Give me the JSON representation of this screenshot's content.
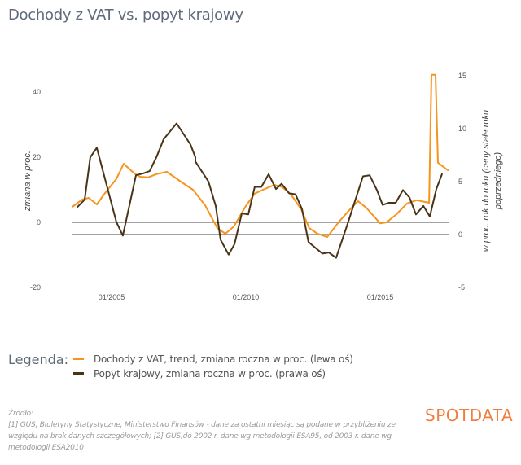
{
  "title": "Dochody z VAT vs. popyt krajowy",
  "legend": {
    "heading": "Legenda:",
    "items": [
      {
        "label": "Dochody z VAT, trend, zmiana roczna w proc. (lewa oś)",
        "color": "#f7941d"
      },
      {
        "label": "Popyt krajowy, zmiana roczna w proc. (prawa oś)",
        "color": "#4a3418"
      }
    ]
  },
  "source": {
    "heading": "Źródło:",
    "text": "[1] GUS, Biuletyny Statystyczne, Ministerstwo Finansów - dane za ostatni miesiąc są podane w przybliżeniu ze względu na brak danych szczegółowych; [2] GUS,do 2002 r. dane wg metodologii ESA95, od 2003 r. dane wg metodologii ESA2010"
  },
  "logo": {
    "text": "SPOTDATA",
    "color": "#f07d3c"
  },
  "chart_data": {
    "type": "line",
    "title": "Dochody z VAT vs. popyt krajowy",
    "ylabel": "zmiana w proc.",
    "y2label": "w proc. rok do roku (ceny stałe roku poprzedniego)",
    "xlabel": "",
    "x_ticks": [
      {
        "x": 2005.0,
        "label": "01/2005"
      },
      {
        "x": 2010.0,
        "label": "01/2010"
      },
      {
        "x": 2015.0,
        "label": "01/2015"
      }
    ],
    "xlim": [
      2003.45,
      2017.5
    ],
    "ylim": [
      -20,
      50
    ],
    "y_ticks": [
      -20,
      0,
      20,
      40
    ],
    "y2lim": [
      -5,
      15.4
    ],
    "y2_ticks": [
      -5,
      0,
      5,
      10,
      15
    ],
    "reference_lines": [
      {
        "axis": "left",
        "value": 0
      },
      {
        "axis": "right",
        "value": 0
      }
    ],
    "grid": false,
    "legend_position": "bottom",
    "series": [
      {
        "name": "Dochody z VAT, trend, zmiana roczna w proc. (lewa oś)",
        "axis": "left",
        "color": "#f7941d",
        "x": [
          2003.55,
          2003.91,
          2004.15,
          2004.45,
          2004.76,
          2005.18,
          2005.45,
          2005.85,
          2006.06,
          2006.36,
          2006.67,
          2007.06,
          2007.58,
          2008.03,
          2008.48,
          2008.94,
          2009.24,
          2009.55,
          2010.0,
          2010.33,
          2010.64,
          2011.06,
          2011.36,
          2011.7,
          2012.06,
          2012.36,
          2012.67,
          2013.03,
          2013.48,
          2013.88,
          2014.18,
          2014.48,
          2015.0,
          2015.24,
          2015.61,
          2016.0,
          2016.36,
          2016.82,
          2016.91,
          2017.06,
          2017.15,
          2017.52
        ],
        "values": [
          4.8,
          7.0,
          7.5,
          5.5,
          9.0,
          13.3,
          18.0,
          15.0,
          14.0,
          13.8,
          14.8,
          15.5,
          12.5,
          10.0,
          5.3,
          -1.8,
          -3.5,
          -1.3,
          5.0,
          8.8,
          10.0,
          11.5,
          10.8,
          8.3,
          4.0,
          -1.8,
          -3.5,
          -4.5,
          0.3,
          4.0,
          6.5,
          4.5,
          -0.3,
          0.0,
          2.5,
          5.8,
          6.8,
          6.0,
          45.3,
          45.3,
          18.3,
          16.0
        ]
      },
      {
        "name": "Popyt krajowy, zmiana roczna w proc. (prawa oś)",
        "axis": "right",
        "color": "#4a3418",
        "x": [
          2003.73,
          2004.0,
          2004.21,
          2004.45,
          2005.18,
          2005.42,
          2005.91,
          2006.21,
          2006.42,
          2006.67,
          2006.94,
          2007.42,
          2007.94,
          2008.12,
          2008.12,
          2008.61,
          2008.88,
          2009.06,
          2009.36,
          2009.58,
          2009.85,
          2010.09,
          2010.33,
          2010.58,
          2010.85,
          2011.12,
          2011.33,
          2011.61,
          2011.85,
          2012.09,
          2012.33,
          2012.61,
          2012.85,
          2013.09,
          2013.36,
          2013.76,
          2014.36,
          2014.61,
          2014.88,
          2015.09,
          2015.33,
          2015.58,
          2015.85,
          2016.09,
          2016.33,
          2016.61,
          2016.85,
          2017.09,
          2017.3
        ],
        "values": [
          2.6,
          3.3,
          7.3,
          8.2,
          1.2,
          -0.1,
          5.6,
          5.8,
          6.0,
          7.3,
          9.0,
          10.5,
          8.5,
          7.3,
          6.9,
          5.0,
          2.7,
          -0.5,
          -1.9,
          -0.9,
          2.0,
          1.9,
          4.5,
          4.5,
          5.7,
          4.3,
          4.8,
          3.9,
          3.8,
          2.4,
          -0.7,
          -1.3,
          -1.8,
          -1.7,
          -2.2,
          0.8,
          5.5,
          5.6,
          4.2,
          2.8,
          3.0,
          3.0,
          4.2,
          3.5,
          1.9,
          2.7,
          1.7,
          4.3,
          5.7
        ]
      }
    ]
  }
}
